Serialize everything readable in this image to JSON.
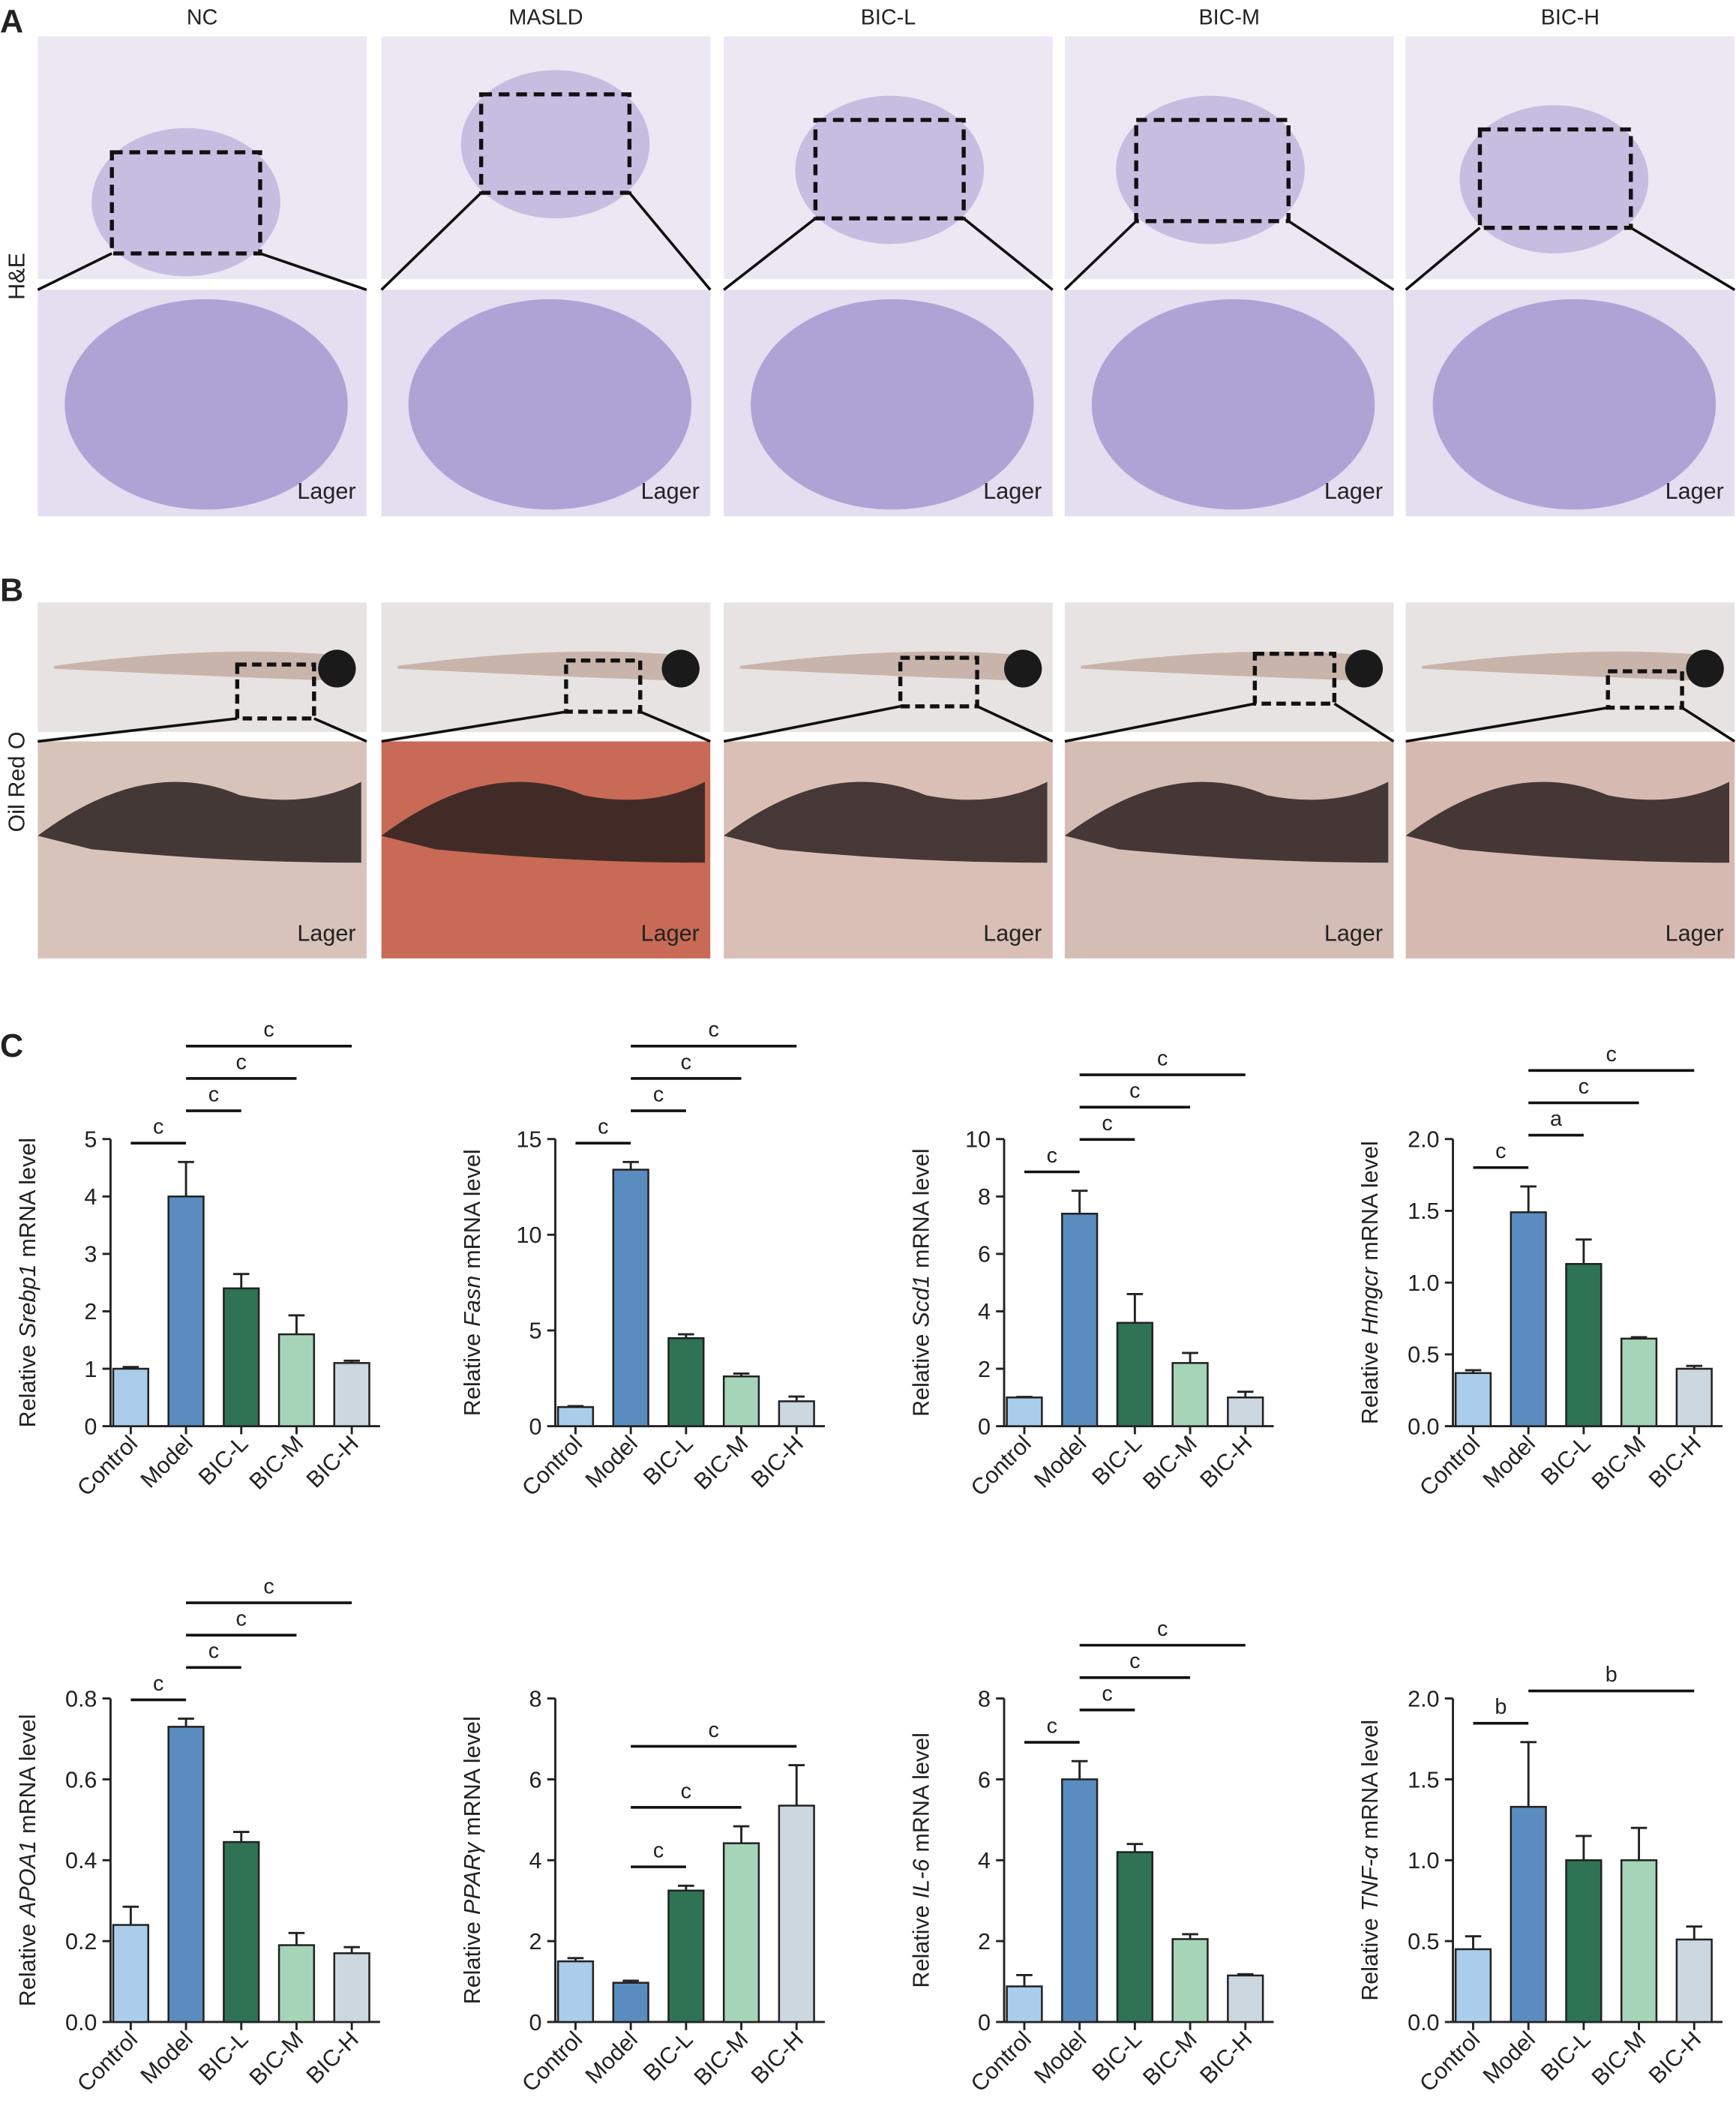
{
  "panel_labels": [
    "A",
    "B",
    "C"
  ],
  "groups": [
    "NC",
    "MASLD",
    "BIC-L",
    "BIC-M",
    "BIC-H"
  ],
  "rows": [
    "H&E",
    "Oil Red O"
  ],
  "zoom_label": "Lager",
  "chart_data": [
    {
      "type": "bar",
      "ylabel": [
        "Relative",
        "Srebp1",
        "mRNA level"
      ],
      "categories": [
        "Control",
        "Model",
        "BIC-L",
        "BIC-M",
        "BIC-H"
      ],
      "values": [
        1.0,
        4.0,
        2.4,
        1.6,
        1.1
      ],
      "errors": [
        0.03,
        0.6,
        0.25,
        0.33,
        0.04
      ],
      "colors": [
        "#a9cdea",
        "#5b8cc0",
        "#2e7353",
        "#a6d4b8",
        "#ccd7e0"
      ],
      "ylim": [
        0,
        5
      ],
      "yticks": [
        0,
        1,
        2,
        3,
        4,
        5
      ],
      "significance": [
        {
          "label": "c",
          "between": [
            "Control",
            "Model"
          ]
        },
        {
          "label": "c",
          "between": [
            "Model",
            "BIC-L"
          ]
        },
        {
          "label": "c",
          "between": [
            "Model",
            "BIC-M"
          ]
        },
        {
          "label": "c",
          "between": [
            "Model",
            "BIC-H"
          ]
        }
      ]
    },
    {
      "type": "bar",
      "ylabel": [
        "Relative",
        "Fasn",
        "mRNA level"
      ],
      "categories": [
        "Control",
        "Model",
        "BIC-L",
        "BIC-M",
        "BIC-H"
      ],
      "values": [
        1.0,
        13.4,
        4.6,
        2.6,
        1.3
      ],
      "errors": [
        0.05,
        0.4,
        0.2,
        0.15,
        0.25
      ],
      "colors": [
        "#a9cdea",
        "#5b8cc0",
        "#2e7353",
        "#a6d4b8",
        "#ccd7e0"
      ],
      "ylim": [
        0,
        15
      ],
      "yticks": [
        0,
        5,
        10,
        15
      ],
      "significance": [
        {
          "label": "c",
          "between": [
            "Control",
            "Model"
          ]
        },
        {
          "label": "c",
          "between": [
            "Model",
            "BIC-L"
          ]
        },
        {
          "label": "c",
          "between": [
            "Model",
            "BIC-M"
          ]
        },
        {
          "label": "c",
          "between": [
            "Model",
            "BIC-H"
          ]
        }
      ]
    },
    {
      "type": "bar",
      "ylabel": [
        "Relative",
        "Scd1",
        "mRNA level"
      ],
      "categories": [
        "Control",
        "Model",
        "BIC-L",
        "BIC-M",
        "BIC-H"
      ],
      "values": [
        1.0,
        7.4,
        3.6,
        2.2,
        1.0
      ],
      "errors": [
        0.02,
        0.8,
        1.0,
        0.35,
        0.2
      ],
      "colors": [
        "#a9cdea",
        "#5b8cc0",
        "#2e7353",
        "#a6d4b8",
        "#ccd7e0"
      ],
      "ylim": [
        0,
        10
      ],
      "yticks": [
        0,
        2,
        4,
        6,
        8,
        10
      ],
      "significance": [
        {
          "label": "c",
          "between": [
            "Control",
            "Model"
          ]
        },
        {
          "label": "c",
          "between": [
            "Model",
            "BIC-L"
          ]
        },
        {
          "label": "c",
          "between": [
            "Model",
            "BIC-M"
          ]
        },
        {
          "label": "c",
          "between": [
            "Model",
            "BIC-H"
          ]
        }
      ]
    },
    {
      "type": "bar",
      "ylabel": [
        "Relative",
        "Hmgcr",
        "mRNA level"
      ],
      "categories": [
        "Control",
        "Model",
        "BIC-L",
        "BIC-M",
        "BIC-H"
      ],
      "values": [
        0.37,
        1.49,
        1.13,
        0.61,
        0.4
      ],
      "errors": [
        0.02,
        0.18,
        0.17,
        0.01,
        0.02
      ],
      "colors": [
        "#a9cdea",
        "#5b8cc0",
        "#2e7353",
        "#a6d4b8",
        "#ccd7e0"
      ],
      "ylim": [
        0,
        2
      ],
      "yticks": [
        {
          "value": 0,
          "label": "0.0"
        },
        0.5,
        {
          "value": 1,
          "label": "1.0"
        },
        1.5,
        {
          "value": 2,
          "label": "2.0"
        }
      ],
      "significance": [
        {
          "label": "c",
          "between": [
            "Control",
            "Model"
          ]
        },
        {
          "label": "a",
          "between": [
            "Model",
            "BIC-L"
          ]
        },
        {
          "label": "c",
          "between": [
            "Model",
            "BIC-M"
          ]
        },
        {
          "label": "c",
          "between": [
            "Model",
            "BIC-H"
          ]
        }
      ]
    },
    {
      "type": "bar",
      "ylabel": [
        "Relative",
        "APOA1",
        "mRNA level"
      ],
      "categories": [
        "Control",
        "Model",
        "BIC-L",
        "BIC-M",
        "BIC-H"
      ],
      "values": [
        0.24,
        0.73,
        0.445,
        0.19,
        0.17
      ],
      "errors": [
        0.045,
        0.02,
        0.025,
        0.03,
        0.015
      ],
      "colors": [
        "#a9cdea",
        "#5b8cc0",
        "#2e7353",
        "#a6d4b8",
        "#ccd7e0"
      ],
      "ylim": [
        0,
        0.8
      ],
      "yticks": [
        {
          "value": 0,
          "label": "0.0"
        },
        0.2,
        0.4,
        0.6,
        0.8
      ],
      "significance": [
        {
          "label": "c",
          "between": [
            "Control",
            "Model"
          ]
        },
        {
          "label": "c",
          "between": [
            "Model",
            "BIC-L"
          ]
        },
        {
          "label": "c",
          "between": [
            "Model",
            "BIC-M"
          ]
        },
        {
          "label": "c",
          "between": [
            "Model",
            "BIC-H"
          ]
        }
      ]
    },
    {
      "type": "bar",
      "ylabel": [
        "Relative",
        "PPARγ",
        "mRNA level"
      ],
      "categories": [
        "Control",
        "Model",
        "BIC-L",
        "BIC-M",
        "BIC-H"
      ],
      "values": [
        1.5,
        0.97,
        3.25,
        4.42,
        5.35
      ],
      "errors": [
        0.08,
        0.05,
        0.12,
        0.42,
        1.0
      ],
      "colors": [
        "#a9cdea",
        "#5b8cc0",
        "#2e7353",
        "#a6d4b8",
        "#ccd7e0"
      ],
      "ylim": [
        0,
        8
      ],
      "yticks": [
        0,
        2,
        4,
        6,
        8
      ],
      "significance": [
        {
          "label": "c",
          "between": [
            "Model",
            "BIC-L"
          ]
        },
        {
          "label": "c",
          "between": [
            "Model",
            "BIC-M"
          ]
        },
        {
          "label": "c",
          "between": [
            "Model",
            "BIC-H"
          ]
        }
      ]
    },
    {
      "type": "bar",
      "ylabel": [
        "Relative",
        "IL-6",
        "mRNA level"
      ],
      "categories": [
        "Control",
        "Model",
        "BIC-L",
        "BIC-M",
        "BIC-H"
      ],
      "values": [
        0.88,
        6.0,
        4.2,
        2.05,
        1.15
      ],
      "errors": [
        0.28,
        0.45,
        0.2,
        0.12,
        0.03
      ],
      "colors": [
        "#a9cdea",
        "#5b8cc0",
        "#2e7353",
        "#a6d4b8",
        "#ccd7e0"
      ],
      "ylim": [
        0,
        8
      ],
      "yticks": [
        0,
        2,
        4,
        6,
        8
      ],
      "significance": [
        {
          "label": "c",
          "between": [
            "Control",
            "Model"
          ]
        },
        {
          "label": "c",
          "between": [
            "Model",
            "BIC-L"
          ]
        },
        {
          "label": "c",
          "between": [
            "Model",
            "BIC-M"
          ]
        },
        {
          "label": "c",
          "between": [
            "Model",
            "BIC-H"
          ]
        }
      ]
    },
    {
      "type": "bar",
      "ylabel": [
        "Relative",
        "TNF-α",
        "mRNA level"
      ],
      "categories": [
        "Control",
        "Model",
        "BIC-L",
        "BIC-M",
        "BIC-H"
      ],
      "values": [
        0.45,
        1.33,
        1.0,
        1.0,
        0.51
      ],
      "errors": [
        0.08,
        0.4,
        0.15,
        0.2,
        0.08
      ],
      "colors": [
        "#a9cdea",
        "#5b8cc0",
        "#2e7353",
        "#a6d4b8",
        "#ccd7e0"
      ],
      "ylim": [
        0,
        2
      ],
      "yticks": [
        {
          "value": 0,
          "label": "0.0"
        },
        0.5,
        {
          "value": 1,
          "label": "1.0"
        },
        1.5,
        {
          "value": 2,
          "label": "2.0"
        }
      ],
      "significance": [
        {
          "label": "b",
          "between": [
            "Control",
            "Model"
          ]
        },
        {
          "label": "b",
          "between": [
            "Model",
            "BIC-H"
          ]
        }
      ]
    }
  ]
}
